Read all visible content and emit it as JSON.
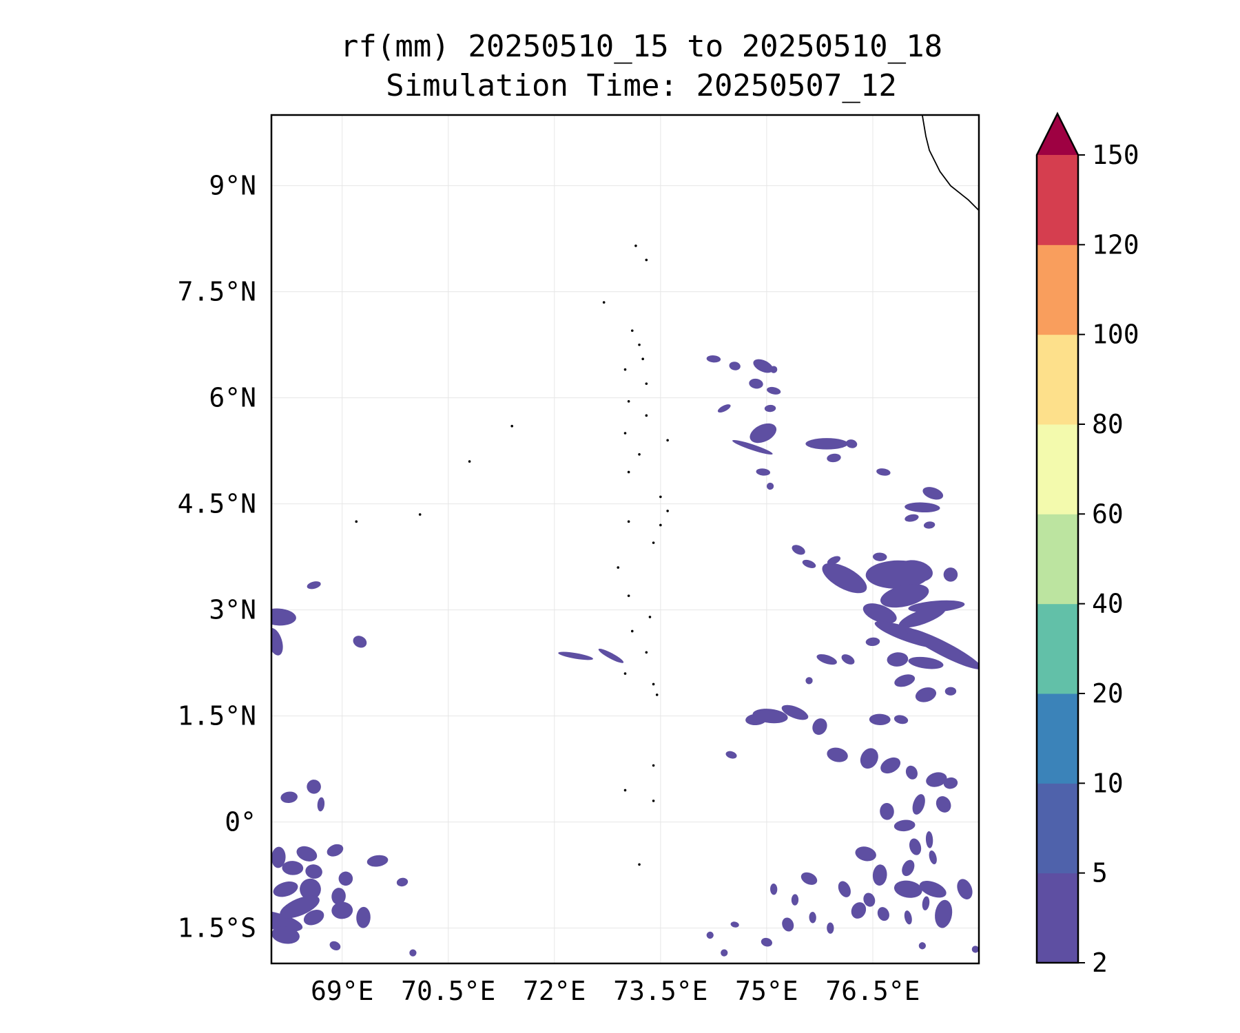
{
  "title": {
    "line1": "rf(mm) 20250510_15 to 20250510_18",
    "line2": "Simulation Time: 20250507_12"
  },
  "map": {
    "lon_range": [
      68.0,
      78.0
    ],
    "lat_range": [
      -2.0,
      10.0
    ],
    "gridlines": true,
    "lon_ticks": [
      {
        "value": 69.0,
        "label": "69°E"
      },
      {
        "value": 70.5,
        "label": "70.5°E"
      },
      {
        "value": 72.0,
        "label": "72°E"
      },
      {
        "value": 73.5,
        "label": "73.5°E"
      },
      {
        "value": 75.0,
        "label": "75°E"
      },
      {
        "value": 76.5,
        "label": "76.5°E"
      }
    ],
    "lat_ticks": [
      {
        "value": 9.0,
        "label": "9°N"
      },
      {
        "value": 7.5,
        "label": "7.5°N"
      },
      {
        "value": 6.0,
        "label": "6°N"
      },
      {
        "value": 4.5,
        "label": "4.5°N"
      },
      {
        "value": 3.0,
        "label": "3°N"
      },
      {
        "value": 1.5,
        "label": "1.5°N"
      },
      {
        "value": 0.0,
        "label": "0°"
      },
      {
        "value": -1.5,
        "label": "1.5°S"
      }
    ],
    "coastline_india": [
      [
        77.2,
        10.0
      ],
      [
        77.25,
        9.7
      ],
      [
        77.3,
        9.5
      ],
      [
        77.45,
        9.2
      ],
      [
        77.6,
        9.0
      ],
      [
        77.85,
        8.8
      ],
      [
        78.0,
        8.65
      ],
      [
        78.25,
        8.45
      ],
      [
        78.55,
        8.35
      ],
      [
        78.8,
        8.3
      ],
      [
        79.0,
        8.45
      ]
    ],
    "atolls": [
      [
        73.15,
        8.15
      ],
      [
        73.3,
        7.95
      ],
      [
        72.7,
        7.35
      ],
      [
        73.1,
        6.95
      ],
      [
        73.2,
        6.75
      ],
      [
        73.25,
        6.55
      ],
      [
        73.0,
        6.4
      ],
      [
        73.3,
        6.2
      ],
      [
        73.05,
        5.95
      ],
      [
        73.3,
        5.75
      ],
      [
        73.0,
        5.5
      ],
      [
        73.6,
        5.4
      ],
      [
        73.2,
        5.2
      ],
      [
        73.05,
        4.95
      ],
      [
        73.5,
        4.6
      ],
      [
        73.6,
        4.4
      ],
      [
        73.05,
        4.25
      ],
      [
        73.5,
        4.2
      ],
      [
        73.4,
        3.95
      ],
      [
        72.9,
        3.6
      ],
      [
        73.05,
        3.2
      ],
      [
        73.1,
        2.7
      ],
      [
        73.35,
        2.9
      ],
      [
        73.3,
        2.4
      ],
      [
        73.0,
        2.1
      ],
      [
        73.4,
        1.95
      ],
      [
        73.45,
        1.8
      ],
      [
        73.0,
        0.45
      ],
      [
        73.4,
        0.3
      ],
      [
        73.2,
        -0.6
      ],
      [
        71.4,
        5.6
      ],
      [
        70.8,
        5.1
      ],
      [
        69.2,
        4.25
      ],
      [
        70.1,
        4.35
      ],
      [
        73.4,
        0.8
      ]
    ],
    "rain_patches": [
      [
        68.1,
        2.9,
        0.25,
        0.12
      ],
      [
        68.05,
        2.55,
        0.1,
        0.2
      ],
      [
        69.25,
        2.55,
        0.1,
        0.08
      ],
      [
        68.6,
        3.35,
        0.1,
        0.05
      ],
      [
        68.25,
        0.35,
        0.12,
        0.08
      ],
      [
        68.6,
        0.5,
        0.1,
        0.1
      ],
      [
        68.7,
        0.25,
        0.05,
        0.1
      ],
      [
        68.1,
        -0.5,
        0.1,
        0.15
      ],
      [
        68.5,
        -0.45,
        0.15,
        0.1
      ],
      [
        68.9,
        -0.4,
        0.12,
        0.08
      ],
      [
        68.3,
        -0.65,
        0.15,
        0.1
      ],
      [
        68.6,
        -0.7,
        0.12,
        0.1
      ],
      [
        68.2,
        -0.95,
        0.18,
        0.1
      ],
      [
        68.55,
        -0.95,
        0.15,
        0.15
      ],
      [
        69.05,
        -0.8,
        0.1,
        0.1
      ],
      [
        68.05,
        -1.4,
        0.4,
        0.12
      ],
      [
        68.4,
        -1.2,
        0.3,
        0.12
      ],
      [
        68.2,
        -1.6,
        0.2,
        0.12
      ],
      [
        68.6,
        -1.35,
        0.15,
        0.1
      ],
      [
        68.95,
        -1.05,
        0.1,
        0.12
      ],
      [
        69.0,
        -1.25,
        0.15,
        0.12
      ],
      [
        69.3,
        -1.35,
        0.1,
        0.15
      ],
      [
        69.5,
        -0.55,
        0.15,
        0.08
      ],
      [
        69.85,
        -0.85,
        0.08,
        0.06
      ],
      [
        68.9,
        -1.75,
        0.08,
        0.06
      ],
      [
        70.0,
        -1.85,
        0.05,
        0.05
      ],
      [
        72.3,
        2.35,
        0.25,
        0.04
      ],
      [
        72.8,
        2.35,
        0.2,
        0.04
      ],
      [
        74.25,
        6.55,
        0.1,
        0.05
      ],
      [
        74.55,
        6.45,
        0.08,
        0.06
      ],
      [
        74.95,
        6.45,
        0.15,
        0.08
      ],
      [
        75.1,
        6.4,
        0.05,
        0.05
      ],
      [
        74.85,
        6.2,
        0.1,
        0.07
      ],
      [
        75.1,
        6.1,
        0.1,
        0.05
      ],
      [
        74.4,
        5.85,
        0.1,
        0.04
      ],
      [
        75.05,
        5.85,
        0.08,
        0.05
      ],
      [
        74.95,
        5.5,
        0.2,
        0.12
      ],
      [
        74.8,
        5.3,
        0.3,
        0.04
      ],
      [
        74.95,
        4.95,
        0.1,
        0.05
      ],
      [
        75.05,
        4.75,
        0.05,
        0.05
      ],
      [
        75.85,
        5.35,
        0.3,
        0.08
      ],
      [
        76.2,
        5.35,
        0.08,
        0.06
      ],
      [
        75.95,
        5.15,
        0.1,
        0.06
      ],
      [
        76.65,
        4.95,
        0.1,
        0.05
      ],
      [
        77.2,
        4.45,
        0.25,
        0.07
      ],
      [
        77.35,
        4.65,
        0.15,
        0.08
      ],
      [
        77.05,
        4.3,
        0.1,
        0.05
      ],
      [
        77.3,
        4.2,
        0.08,
        0.05
      ],
      [
        75.45,
        3.85,
        0.1,
        0.06
      ],
      [
        75.6,
        3.65,
        0.1,
        0.05
      ],
      [
        76.1,
        3.45,
        0.35,
        0.15
      ],
      [
        75.95,
        3.7,
        0.1,
        0.05
      ],
      [
        77.1,
        3.55,
        0.25,
        0.15
      ],
      [
        76.85,
        3.5,
        0.45,
        0.2
      ],
      [
        76.6,
        3.75,
        0.1,
        0.06
      ],
      [
        76.95,
        3.2,
        0.35,
        0.15
      ],
      [
        77.4,
        3.05,
        0.4,
        0.08
      ],
      [
        77.6,
        3.5,
        0.1,
        0.1
      ],
      [
        76.6,
        2.95,
        0.25,
        0.12
      ],
      [
        77.2,
        2.9,
        0.35,
        0.1
      ],
      [
        77.0,
        2.65,
        0.5,
        0.1
      ],
      [
        77.5,
        2.45,
        0.6,
        0.1
      ],
      [
        77.25,
        2.25,
        0.25,
        0.08
      ],
      [
        76.85,
        2.3,
        0.15,
        0.1
      ],
      [
        76.5,
        2.55,
        0.1,
        0.06
      ],
      [
        75.85,
        2.3,
        0.15,
        0.06
      ],
      [
        76.15,
        2.3,
        0.1,
        0.06
      ],
      [
        75.6,
        2.0,
        0.05,
        0.05
      ],
      [
        76.95,
        2.0,
        0.15,
        0.08
      ],
      [
        77.25,
        1.8,
        0.15,
        0.1
      ],
      [
        77.6,
        1.85,
        0.08,
        0.06
      ],
      [
        74.85,
        1.45,
        0.15,
        0.08
      ],
      [
        75.05,
        1.5,
        0.25,
        0.1
      ],
      [
        75.4,
        1.55,
        0.2,
        0.08
      ],
      [
        75.75,
        1.35,
        0.1,
        0.12
      ],
      [
        74.5,
        0.95,
        0.08,
        0.05
      ],
      [
        76.0,
        0.95,
        0.15,
        0.1
      ],
      [
        76.45,
        0.9,
        0.12,
        0.15
      ],
      [
        76.75,
        0.8,
        0.15,
        0.1
      ],
      [
        76.6,
        1.45,
        0.15,
        0.08
      ],
      [
        76.9,
        1.45,
        0.1,
        0.06
      ],
      [
        77.05,
        0.7,
        0.08,
        0.1
      ],
      [
        77.4,
        0.6,
        0.15,
        0.1
      ],
      [
        77.6,
        0.55,
        0.1,
        0.08
      ],
      [
        77.15,
        0.25,
        0.08,
        0.15
      ],
      [
        77.5,
        0.25,
        0.1,
        0.12
      ],
      [
        76.7,
        0.15,
        0.1,
        0.12
      ],
      [
        76.95,
        -0.05,
        0.15,
        0.08
      ],
      [
        77.1,
        -0.35,
        0.08,
        0.12
      ],
      [
        77.3,
        -0.25,
        0.05,
        0.12
      ],
      [
        76.4,
        -0.45,
        0.15,
        0.1
      ],
      [
        76.6,
        -0.75,
        0.1,
        0.15
      ],
      [
        77.0,
        -0.65,
        0.08,
        0.12
      ],
      [
        77.35,
        -0.5,
        0.05,
        0.1
      ],
      [
        77.0,
        -0.95,
        0.2,
        0.12
      ],
      [
        77.35,
        -0.95,
        0.2,
        0.1
      ],
      [
        77.8,
        -0.95,
        0.1,
        0.15
      ],
      [
        76.1,
        -0.95,
        0.08,
        0.12
      ],
      [
        76.45,
        -1.1,
        0.08,
        0.1
      ],
      [
        76.3,
        -1.25,
        0.1,
        0.12
      ],
      [
        76.65,
        -1.3,
        0.08,
        0.1
      ],
      [
        77.0,
        -1.35,
        0.05,
        0.1
      ],
      [
        77.5,
        -1.3,
        0.12,
        0.2
      ],
      [
        77.25,
        -1.15,
        0.05,
        0.1
      ],
      [
        75.3,
        -1.45,
        0.08,
        0.1
      ],
      [
        75.65,
        -1.35,
        0.05,
        0.08
      ],
      [
        75.9,
        -1.5,
        0.05,
        0.08
      ],
      [
        74.55,
        -1.45,
        0.06,
        0.04
      ],
      [
        74.2,
        -1.6,
        0.05,
        0.05
      ],
      [
        75.0,
        -1.7,
        0.08,
        0.06
      ],
      [
        74.4,
        -1.85,
        0.05,
        0.05
      ],
      [
        75.6,
        -0.8,
        0.12,
        0.08
      ],
      [
        75.1,
        -0.95,
        0.05,
        0.08
      ],
      [
        75.4,
        -1.1,
        0.05,
        0.08
      ],
      [
        77.2,
        -1.75,
        0.05,
        0.05
      ],
      [
        77.95,
        -1.8,
        0.05,
        0.05
      ]
    ]
  },
  "colorbar": {
    "levels": [
      2,
      5,
      10,
      20,
      40,
      60,
      80,
      100,
      120,
      150
    ],
    "labels": [
      "2",
      "5",
      "10",
      "20",
      "40",
      "60",
      "80",
      "100",
      "120",
      "150"
    ],
    "colors": [
      "#5e4fa2",
      "#4f62ab",
      "#3b83b9",
      "#62c0a8",
      "#bce4a0",
      "#f3faad",
      "#fde08b",
      "#f99e5d",
      "#d53e4f"
    ],
    "extend_color": "#9e0142"
  }
}
